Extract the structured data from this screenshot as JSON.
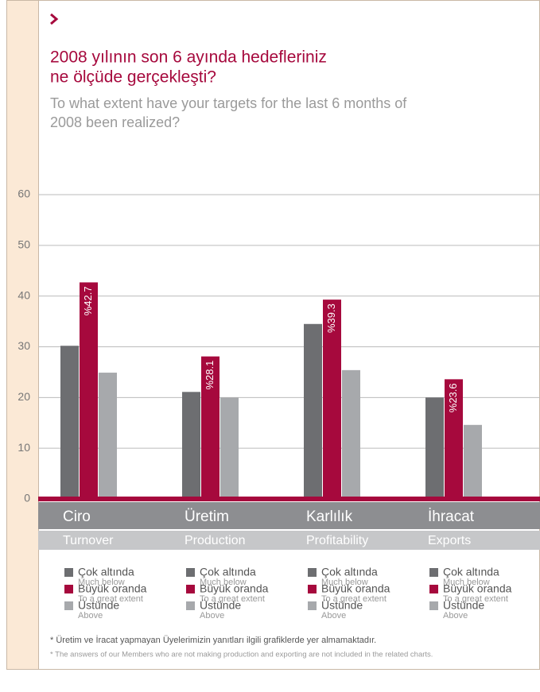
{
  "header": {
    "title": [
      "2008 yılının son 6 ayında hedefleriniz",
      "ne ölçüde gerçekleşti?"
    ],
    "subtitle": [
      "To what extent have your targets for the last 6 months of",
      "2008 been realized?"
    ]
  },
  "chart_data": {
    "type": "bar",
    "categories": [
      "Ciro",
      "Üretim",
      "Karlılık",
      "İhracat"
    ],
    "categories_en": [
      "Turnover",
      "Production",
      "Profitability",
      "Exports"
    ],
    "series": [
      {
        "name": "Çok altında",
        "name_en": "Much below",
        "color": "#6d6e71",
        "values": [
          30.2,
          21.1,
          34.5,
          20.0
        ]
      },
      {
        "name": "Büyük oranda",
        "name_en": "To a great extent",
        "color": "#a6093d",
        "values": [
          42.7,
          28.1,
          39.3,
          23.6
        ],
        "value_labels": [
          "%42.7",
          "%28.1",
          "%39.3",
          "%23.6"
        ]
      },
      {
        "name": "Üstünde",
        "name_en": "Above",
        "color": "#a7a9ac",
        "values": [
          24.9,
          20.0,
          25.4,
          14.6
        ]
      }
    ],
    "ylim": [
      0,
      60
    ],
    "yticks": [
      0,
      10,
      20,
      30,
      40,
      50,
      60
    ],
    "grid": true
  },
  "footnotes": [
    "* Üretim ve İracat yapmayan Üyelerimizin yanıtları ilgili grafiklerde yer almamaktadır.",
    "* The answers of our Members who are not making production and exporting are not included in the related charts."
  ]
}
